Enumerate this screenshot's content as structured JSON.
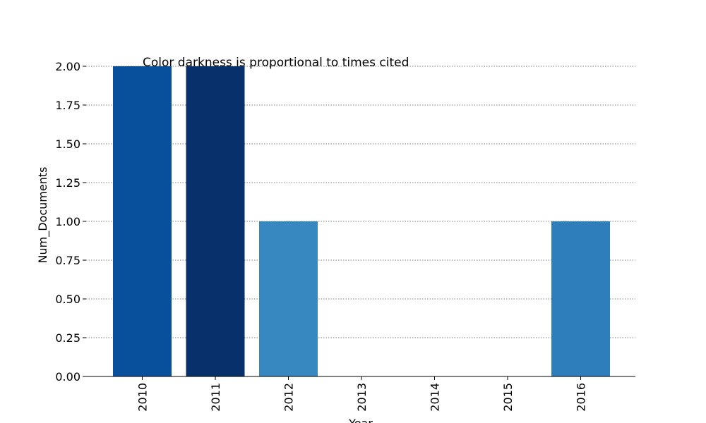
{
  "chart_data": {
    "type": "bar",
    "categories": [
      "2010",
      "2011",
      "2012",
      "2013",
      "2014",
      "2015",
      "2016"
    ],
    "values": [
      2,
      2,
      1,
      0,
      0,
      0,
      1
    ],
    "bar_colors": [
      "#08509b",
      "#08306b",
      "#3787c0",
      "#f7fbff",
      "#f7fbff",
      "#f7fbff",
      "#2e7ebc"
    ],
    "xlabel": "Year",
    "ylabel": "Num_Documents",
    "ylim": [
      0,
      2
    ],
    "yticks": [
      "0.00",
      "0.25",
      "0.50",
      "0.75",
      "1.00",
      "1.25",
      "1.50",
      "1.75",
      "2.00"
    ],
    "annotation": "Color darkness is proportional to times cited",
    "grid": "horizontal dotted",
    "legend": "none"
  }
}
